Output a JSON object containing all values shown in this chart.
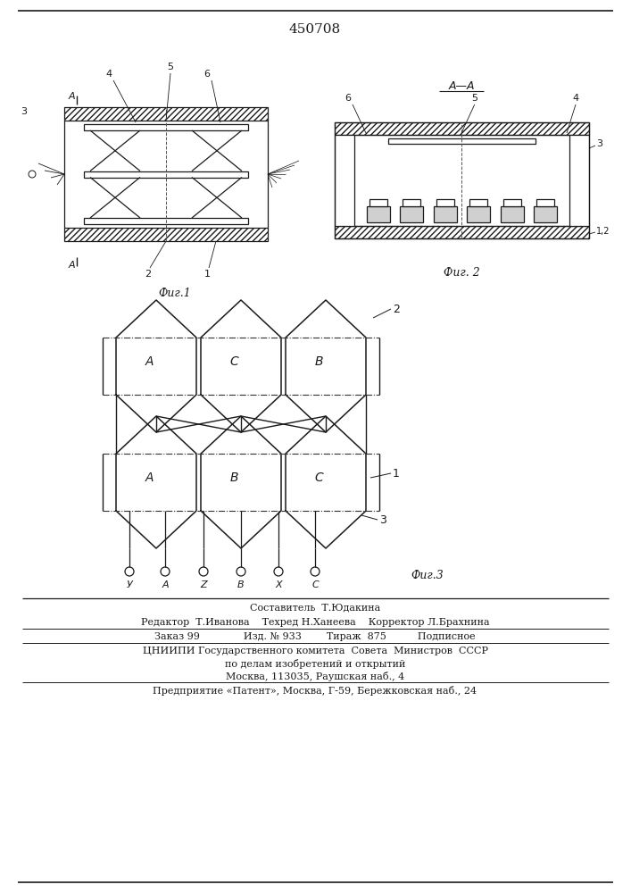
{
  "patent_number": "450708",
  "fig1_caption": "Фиг.1",
  "fig2_caption": "Фиг. 2",
  "fig3_caption": "Фиг.3",
  "footer_lines": [
    "Составитель  Т.Юдакина",
    "Редактор  Т.Иванова    Техред Н.Ханеева    Корректор Л.Брахнина",
    "Заказ 99              Изд. № 933        Тираж  875          Подписное",
    "ЦНИИПИ Государственного комитета  Совета  Министров  СССР",
    "по делам изобретений и открытий",
    "Москва, 113035, Раушская наб., 4",
    "Предприятие «Патент», Москва, Г-59, Бережковская наб., 24"
  ],
  "bg_color": "#ffffff",
  "line_color": "#1a1a1a"
}
